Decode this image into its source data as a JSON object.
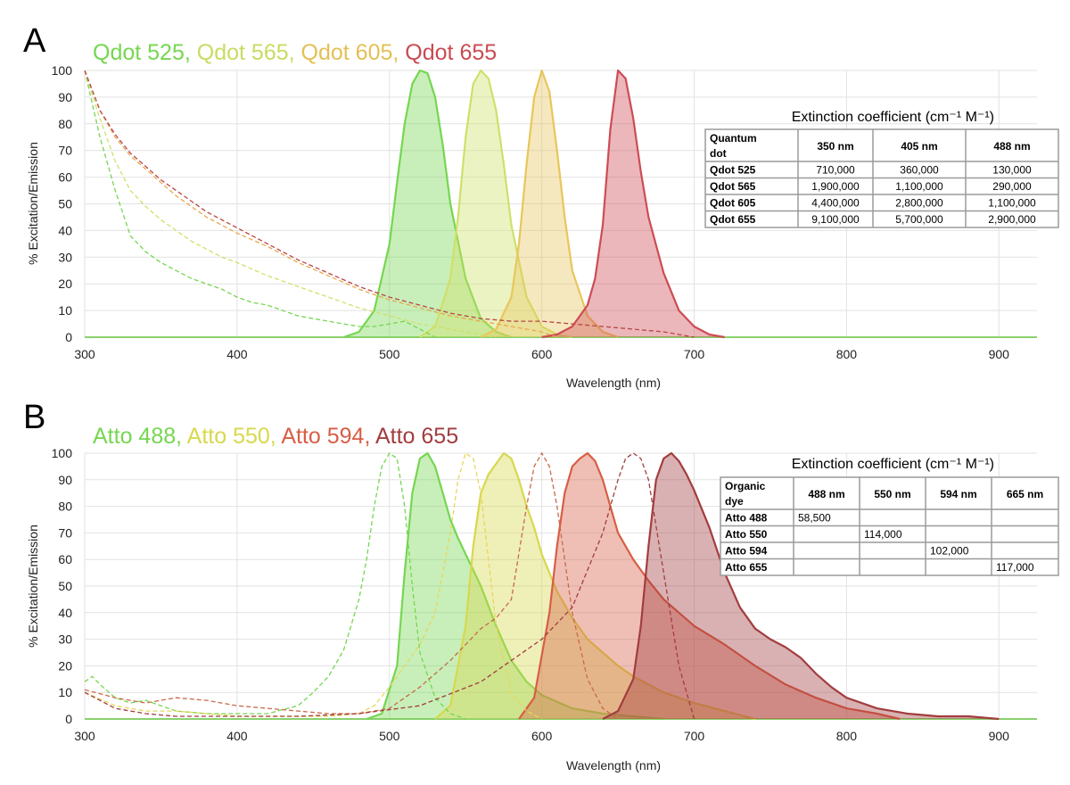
{
  "chart_data": [
    {
      "type": "area",
      "panel_label": "A",
      "legend_items": [
        {
          "label": "Qdot 525",
          "color": "#76d651"
        },
        {
          "label": "Qdot 565",
          "color": "#c8dc62"
        },
        {
          "label": "Qdot 605",
          "color": "#e3c056"
        },
        {
          "label": "Qdot 655",
          "color": "#c94b53"
        }
      ],
      "xlabel": "Wavelength (nm)",
      "ylabel": "% Excitation/Emission",
      "xlim": [
        300,
        925
      ],
      "ylim": [
        0,
        100
      ],
      "xticks": [
        300,
        400,
        500,
        600,
        700,
        800,
        900
      ],
      "yticks": [
        0,
        10,
        20,
        30,
        40,
        50,
        60,
        70,
        80,
        90,
        100
      ],
      "grid": true,
      "series": [
        {
          "name": "Qdot 525",
          "kind": "emission",
          "color": "#76d651",
          "x": [
            470,
            480,
            490,
            500,
            505,
            510,
            515,
            520,
            525,
            530,
            535,
            540,
            550,
            560,
            570,
            580
          ],
          "y": [
            0,
            2,
            10,
            35,
            58,
            80,
            95,
            100,
            99,
            90,
            72,
            50,
            22,
            7,
            2,
            0
          ]
        },
        {
          "name": "Qdot 565",
          "kind": "emission",
          "color": "#cfe06a",
          "x": [
            520,
            530,
            540,
            545,
            550,
            555,
            560,
            565,
            570,
            575,
            580,
            590,
            600,
            610,
            620
          ],
          "y": [
            0,
            4,
            22,
            45,
            75,
            95,
            100,
            97,
            85,
            65,
            42,
            15,
            4,
            1,
            0
          ]
        },
        {
          "name": "Qdot 605",
          "kind": "emission",
          "color": "#e8c65c",
          "x": [
            560,
            570,
            580,
            585,
            590,
            595,
            600,
            605,
            610,
            615,
            620,
            630,
            640,
            650
          ],
          "y": [
            0,
            3,
            15,
            35,
            65,
            90,
            100,
            92,
            70,
            45,
            25,
            8,
            2,
            0
          ]
        },
        {
          "name": "Qdot 655",
          "kind": "emission",
          "color": "#cd4c55",
          "x": [
            600,
            610,
            620,
            630,
            635,
            640,
            645,
            650,
            655,
            660,
            665,
            670,
            680,
            690,
            700,
            710,
            720
          ],
          "y": [
            0,
            1,
            4,
            12,
            22,
            42,
            78,
            100,
            97,
            82,
            62,
            45,
            24,
            10,
            4,
            1,
            0
          ]
        },
        {
          "name": "Qdot 525",
          "kind": "excitation",
          "color": "#76d651",
          "x": [
            300,
            310,
            320,
            330,
            340,
            350,
            360,
            370,
            380,
            390,
            400,
            410,
            420,
            430,
            440,
            450,
            460,
            470,
            480,
            490,
            500,
            510,
            520,
            530
          ],
          "y": [
            100,
            75,
            55,
            38,
            32,
            28,
            25,
            22,
            20,
            18,
            15,
            13,
            12,
            10,
            8,
            7,
            6,
            5,
            4,
            4,
            5,
            6,
            3,
            0
          ]
        },
        {
          "name": "Qdot 565",
          "kind": "excitation",
          "color": "#cfe06a",
          "x": [
            300,
            310,
            320,
            330,
            340,
            350,
            360,
            370,
            380,
            390,
            400,
            420,
            440,
            460,
            480,
            500,
            520,
            540,
            560,
            570
          ],
          "y": [
            100,
            82,
            66,
            55,
            49,
            44,
            40,
            36,
            33,
            30,
            28,
            23,
            19,
            15,
            11,
            8,
            5,
            3,
            1,
            0
          ]
        },
        {
          "name": "Qdot 605",
          "kind": "excitation",
          "color": "#e8a84e",
          "x": [
            300,
            310,
            320,
            330,
            340,
            350,
            360,
            370,
            380,
            400,
            420,
            440,
            460,
            480,
            500,
            520,
            540,
            560,
            580,
            600,
            610
          ],
          "y": [
            100,
            85,
            75,
            68,
            63,
            58,
            53,
            49,
            45,
            39,
            34,
            28,
            23,
            18,
            14,
            11,
            8,
            6,
            4,
            2,
            0
          ]
        },
        {
          "name": "Qdot 655",
          "kind": "excitation",
          "color": "#b84646",
          "x": [
            300,
            310,
            320,
            330,
            340,
            350,
            360,
            370,
            380,
            400,
            420,
            440,
            460,
            480,
            500,
            520,
            540,
            560,
            580,
            600,
            620,
            640,
            660,
            680,
            700
          ],
          "y": [
            100,
            85,
            76,
            69,
            64,
            59,
            55,
            51,
            47,
            41,
            35,
            29,
            24,
            19,
            15,
            12,
            9,
            7,
            6,
            6,
            5,
            4,
            3,
            2,
            0
          ]
        }
      ],
      "table": {
        "title": "Extinction coefficient (cm⁻¹ M⁻¹)",
        "headers": [
          "Quantum dot",
          "350 nm",
          "405 nm",
          "488 nm"
        ],
        "rows": [
          [
            "Qdot 525",
            "710,000",
            "360,000",
            "130,000"
          ],
          [
            "Qdot 565",
            "1,900,000",
            "1,100,000",
            "290,000"
          ],
          [
            "Qdot 605",
            "4,400,000",
            "2,800,000",
            "1,100,000"
          ],
          [
            "Qdot 655",
            "9,100,000",
            "5,700,000",
            "2,900,000"
          ]
        ]
      }
    },
    {
      "type": "area",
      "panel_label": "B",
      "legend_items": [
        {
          "label": "Atto 488",
          "color": "#76d651"
        },
        {
          "label": "Atto 550",
          "color": "#d8d84e"
        },
        {
          "label": "Atto 594",
          "color": "#d85e45"
        },
        {
          "label": "Atto 655",
          "color": "#a23d3f"
        }
      ],
      "xlabel": "Wavelength (nm)",
      "ylabel": "% Excitation/Emission",
      "xlim": [
        300,
        925
      ],
      "ylim": [
        0,
        100
      ],
      "xticks": [
        300,
        400,
        500,
        600,
        700,
        800,
        900
      ],
      "yticks": [
        0,
        10,
        20,
        30,
        40,
        50,
        60,
        70,
        80,
        90,
        100
      ],
      "grid": true,
      "series": [
        {
          "name": "Atto 488",
          "kind": "emission",
          "color": "#76d651",
          "x": [
            485,
            495,
            505,
            510,
            515,
            520,
            525,
            530,
            535,
            540,
            545,
            550,
            560,
            570,
            580,
            590,
            600,
            620,
            640,
            660,
            680
          ],
          "y": [
            0,
            2,
            20,
            55,
            85,
            98,
            100,
            95,
            85,
            75,
            68,
            62,
            50,
            35,
            22,
            14,
            9,
            4,
            2,
            1,
            0
          ]
        },
        {
          "name": "Atto 550",
          "kind": "emission",
          "color": "#d8d84e",
          "x": [
            530,
            540,
            550,
            555,
            560,
            565,
            570,
            575,
            580,
            585,
            590,
            595,
            600,
            610,
            620,
            630,
            640,
            650,
            660,
            680,
            700,
            720,
            740
          ],
          "y": [
            0,
            5,
            35,
            65,
            85,
            92,
            96,
            100,
            98,
            90,
            80,
            72,
            62,
            48,
            38,
            30,
            25,
            20,
            16,
            10,
            6,
            3,
            0
          ]
        },
        {
          "name": "Atto 594",
          "kind": "emission",
          "color": "#d85e45",
          "x": [
            585,
            595,
            605,
            610,
            615,
            620,
            625,
            630,
            635,
            640,
            645,
            650,
            660,
            670,
            680,
            690,
            700,
            720,
            740,
            760,
            780,
            800,
            820,
            835
          ],
          "y": [
            0,
            8,
            40,
            65,
            85,
            95,
            98,
            100,
            97,
            90,
            80,
            70,
            60,
            52,
            45,
            40,
            35,
            28,
            20,
            13,
            8,
            4,
            2,
            0
          ]
        },
        {
          "name": "Atto 655",
          "kind": "emission",
          "color": "#a23d3f",
          "x": [
            640,
            650,
            660,
            665,
            670,
            675,
            680,
            685,
            690,
            695,
            700,
            710,
            720,
            730,
            740,
            750,
            760,
            770,
            780,
            790,
            800,
            820,
            840,
            860,
            880,
            900
          ],
          "y": [
            0,
            3,
            15,
            35,
            65,
            90,
            98,
            100,
            97,
            92,
            86,
            72,
            55,
            42,
            34,
            30,
            27,
            23,
            17,
            12,
            8,
            4,
            2,
            1,
            1,
            0
          ]
        },
        {
          "name": "Atto 488",
          "kind": "excitation",
          "color": "#76d651",
          "x": [
            300,
            305,
            310,
            320,
            330,
            340,
            350,
            360,
            380,
            400,
            420,
            440,
            450,
            460,
            470,
            480,
            485,
            490,
            495,
            500,
            505,
            510,
            515,
            520,
            530,
            540,
            550
          ],
          "y": [
            14,
            16,
            13,
            8,
            6,
            7,
            5,
            3,
            2,
            2,
            2,
            5,
            10,
            16,
            26,
            45,
            60,
            80,
            95,
            100,
            98,
            80,
            50,
            25,
            8,
            2,
            0
          ]
        },
        {
          "name": "Atto 550",
          "kind": "excitation",
          "color": "#e6d85a",
          "x": [
            300,
            320,
            340,
            360,
            380,
            400,
            420,
            440,
            460,
            480,
            490,
            500,
            510,
            520,
            530,
            540,
            545,
            550,
            555,
            560,
            565,
            570,
            580,
            590,
            600
          ],
          "y": [
            10,
            5,
            3,
            3,
            2,
            1,
            1,
            1,
            1,
            2,
            5,
            12,
            20,
            28,
            40,
            70,
            90,
            100,
            98,
            85,
            60,
            35,
            10,
            3,
            0
          ]
        },
        {
          "name": "Atto 594",
          "kind": "excitation",
          "color": "#c96a4a",
          "x": [
            300,
            320,
            340,
            350,
            360,
            380,
            400,
            420,
            440,
            460,
            480,
            500,
            520,
            540,
            560,
            570,
            580,
            590,
            595,
            600,
            605,
            610,
            615,
            620,
            630,
            640,
            650
          ],
          "y": [
            11,
            8,
            6,
            7,
            8,
            7,
            5,
            4,
            3,
            2,
            2,
            4,
            12,
            22,
            34,
            38,
            45,
            80,
            95,
            100,
            95,
            80,
            60,
            40,
            15,
            4,
            0
          ]
        },
        {
          "name": "Atto 655",
          "kind": "excitation",
          "color": "#a23d3f",
          "x": [
            300,
            320,
            340,
            360,
            400,
            440,
            480,
            520,
            560,
            580,
            600,
            620,
            640,
            650,
            655,
            660,
            665,
            670,
            680,
            690,
            700
          ],
          "y": [
            10,
            4,
            2,
            1,
            1,
            1,
            2,
            5,
            14,
            22,
            30,
            42,
            70,
            90,
            98,
            100,
            98,
            90,
            55,
            20,
            0
          ]
        }
      ],
      "table": {
        "title": "Extinction coefficient (cm⁻¹ M⁻¹)",
        "headers": [
          "Organic dye",
          "488 nm",
          "550 nm",
          "594 nm",
          "665 nm"
        ],
        "rows": [
          [
            "Atto 488",
            "58,500",
            "",
            "",
            ""
          ],
          [
            "Atto 550",
            "",
            "114,000",
            "",
            ""
          ],
          [
            "Atto 594",
            "",
            "",
            "102,000",
            ""
          ],
          [
            "Atto 655",
            "",
            "",
            "",
            "117,000"
          ]
        ]
      }
    }
  ]
}
